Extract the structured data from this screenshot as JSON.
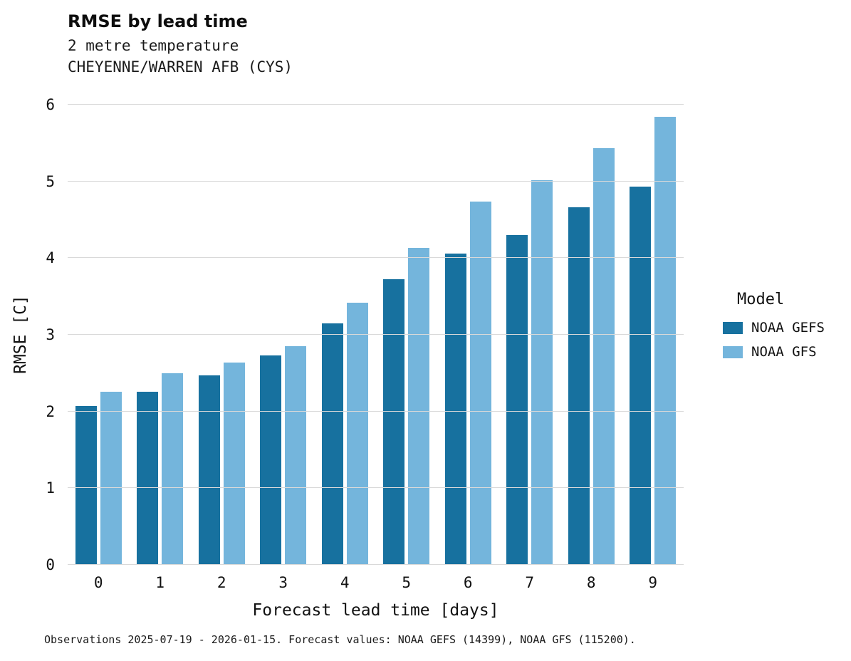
{
  "header": {
    "title": "RMSE by lead time",
    "subtitle_line1": "2 metre temperature",
    "subtitle_line2": "CHEYENNE/WARREN AFB (CYS)"
  },
  "legend": {
    "title": "Model",
    "entries": [
      {
        "label": "NOAA GEFS",
        "color": "#17719f"
      },
      {
        "label": "NOAA GFS",
        "color": "#74b5dc"
      }
    ]
  },
  "footer": {
    "text": "Observations 2025-07-19 - 2026-01-15. Forecast values: NOAA GEFS (14399), NOAA GFS (115200)."
  },
  "chart_data": {
    "type": "bar",
    "title": "RMSE by lead time",
    "subtitle": "2 metre temperature — CHEYENNE/WARREN AFB (CYS)",
    "xlabel": "Forecast lead time [days]",
    "ylabel": "RMSE [C]",
    "categories": [
      "0",
      "1",
      "2",
      "3",
      "4",
      "5",
      "6",
      "7",
      "8",
      "9"
    ],
    "series": [
      {
        "name": "NOAA GEFS",
        "color": "#17719f",
        "values": [
          2.07,
          2.26,
          2.47,
          2.73,
          3.15,
          3.72,
          4.06,
          4.3,
          4.66,
          4.93
        ]
      },
      {
        "name": "NOAA GFS",
        "color": "#74b5dc",
        "values": [
          2.26,
          2.5,
          2.64,
          2.85,
          3.42,
          4.13,
          4.74,
          5.02,
          5.43,
          5.84
        ]
      }
    ],
    "ylim": [
      0,
      6
    ],
    "yticks": [
      0,
      1,
      2,
      3,
      4,
      5,
      6
    ],
    "grid": "horizontal",
    "legend_position": "right",
    "background": "#ffffff"
  }
}
